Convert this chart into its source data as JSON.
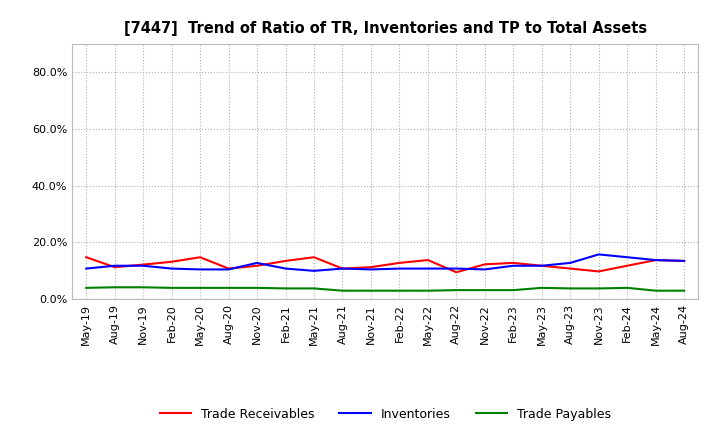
{
  "title": "[7447]  Trend of Ratio of TR, Inventories and TP to Total Assets",
  "x_labels": [
    "May-19",
    "Aug-19",
    "Nov-19",
    "Feb-20",
    "May-20",
    "Aug-20",
    "Nov-20",
    "Feb-21",
    "May-21",
    "Aug-21",
    "Nov-21",
    "Feb-22",
    "May-22",
    "Aug-22",
    "Nov-22",
    "Feb-23",
    "May-23",
    "Aug-23",
    "Nov-23",
    "Feb-24",
    "May-24",
    "Aug-24"
  ],
  "trade_receivables": [
    0.148,
    0.113,
    0.122,
    0.132,
    0.148,
    0.108,
    0.118,
    0.135,
    0.148,
    0.108,
    0.113,
    0.128,
    0.138,
    0.095,
    0.123,
    0.128,
    0.118,
    0.108,
    0.098,
    0.118,
    0.138,
    0.135
  ],
  "inventories": [
    0.108,
    0.118,
    0.118,
    0.108,
    0.105,
    0.105,
    0.128,
    0.108,
    0.1,
    0.108,
    0.105,
    0.108,
    0.108,
    0.108,
    0.105,
    0.118,
    0.118,
    0.128,
    0.158,
    0.148,
    0.138,
    0.135
  ],
  "trade_payables": [
    0.04,
    0.042,
    0.042,
    0.04,
    0.04,
    0.04,
    0.04,
    0.038,
    0.038,
    0.03,
    0.03,
    0.03,
    0.03,
    0.032,
    0.032,
    0.032,
    0.04,
    0.038,
    0.038,
    0.04,
    0.03,
    0.03
  ],
  "line_colors": {
    "trade_receivables": "#ff0000",
    "inventories": "#0000ff",
    "trade_payables": "#008000"
  },
  "ylim": [
    0.0,
    0.9
  ],
  "yticks": [
    0.0,
    0.2,
    0.4,
    0.6,
    0.8
  ],
  "background_color": "#ffffff",
  "plot_bg_color": "#ffffff",
  "grid_color": "#b0b0b0",
  "legend_labels": [
    "Trade Receivables",
    "Inventories",
    "Trade Payables"
  ]
}
